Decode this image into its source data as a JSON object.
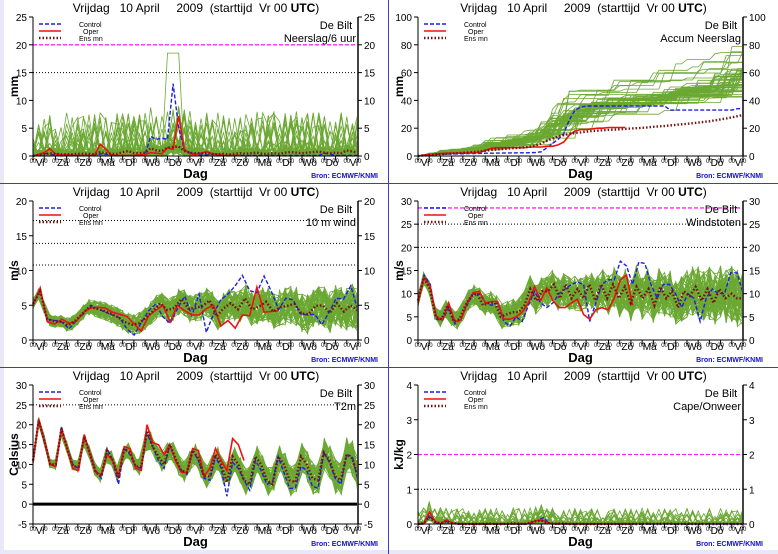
{
  "page": {
    "title_prefix": "Vrijdag   10 April     2009  (starttijd  Vr 00 ",
    "title_suffix": "UTC",
    "title_close": ")",
    "xlabel": "Dag",
    "source": "Bron:  ECMWF/KNMI",
    "station": "De Bilt",
    "days": [
      "Vr",
      "Za",
      "Zo",
      "Ma",
      "Di",
      "Wo",
      "Do",
      "Vr",
      "Za",
      "Zo",
      "Ma",
      "Di",
      "Wo",
      "Do",
      "Vr"
    ],
    "hour_tick": "00",
    "legend": {
      "control": "Control",
      "oper": "Oper",
      "ensmean": "Ens mn"
    },
    "colors": {
      "control": "#1f1fe0",
      "oper": "#ee1111",
      "ensmean": "#7a1010",
      "members": "#6aa832",
      "threshold_magenta": "#ff22ff",
      "border": "#3c3ccc",
      "source": "#1010d0"
    }
  },
  "chart_data": [
    {
      "type": "line",
      "id": "neerslag",
      "subtitle": "Neerslag/6 uur",
      "ylabel": "mm",
      "ylim": [
        0,
        25
      ],
      "yticks": [
        0,
        5,
        10,
        15,
        20,
        25
      ],
      "hlines": [
        {
          "y": 20,
          "style": "magenta-dash"
        },
        {
          "y": 15,
          "style": "black-dot"
        }
      ],
      "control": [
        0,
        0.2,
        0.5,
        0.3,
        0.2,
        0.1,
        0.1,
        0.2,
        0.1,
        0.1,
        0.1,
        0.2,
        0.4,
        0.3,
        0.2,
        0.1,
        0.1,
        0.1,
        0.1,
        0.2,
        0.3,
        3.5,
        3,
        3.2,
        3,
        13,
        5,
        1,
        0.6,
        0.3,
        0.2,
        0.2,
        0.3,
        0.2,
        0.1,
        0.1,
        0.1,
        0.1,
        0.1,
        0.1,
        0.1,
        0.1,
        0.1,
        0.1,
        0.1,
        0.1,
        0.1,
        0.1,
        0.1,
        0.1,
        0.1,
        0.1,
        0.5,
        0.3,
        0.1,
        0.1,
        0.1,
        0.1,
        0.1
      ],
      "oper": [
        0,
        0.3,
        0.6,
        1.3,
        0.4,
        0.2,
        0.2,
        0.1,
        0.1,
        0.1,
        0.1,
        0.2,
        2.1,
        1.2,
        0.2,
        0.1,
        0.1,
        0.1,
        0.1,
        0.2,
        0.3,
        0.6,
        0.5,
        0.4,
        1.5,
        1.2,
        7.2,
        1.2,
        0.4,
        0.3,
        0.5,
        0.8,
        0.4,
        0.3,
        0.1,
        0.1,
        0.1,
        0.1
      ],
      "ensmean": [
        0,
        0.2,
        0.3,
        0.5,
        0.4,
        0.3,
        0.3,
        0.3,
        0.4,
        0.4,
        0.4,
        0.3,
        0.7,
        0.5,
        0.4,
        0.4,
        0.7,
        0.9,
        0.5,
        0.5,
        0.6,
        1.4,
        1,
        0.9,
        1.5,
        1.6,
        1.7,
        0.9,
        0.6,
        0.5,
        0.5,
        0.5,
        0.4,
        0.3,
        0.4,
        0.3,
        0.4,
        0.5,
        0.4,
        0.5,
        0.6,
        0.4,
        0.4,
        0.5,
        0.4,
        0.6,
        0.7,
        0.6,
        0.5,
        0.6,
        0.7,
        0.8,
        0.6,
        0.5,
        0.6,
        0.5,
        1,
        0.8,
        0.6
      ],
      "members_summary": {
        "count": 50,
        "max": 18.5
      }
    },
    {
      "type": "line",
      "id": "accum",
      "subtitle": "Accum Neerslag",
      "ylabel": "mm",
      "ylim": [
        0,
        100
      ],
      "yticks": [
        0,
        20,
        40,
        60,
        80,
        100
      ],
      "hlines": [],
      "control": [
        0,
        0.5,
        1,
        1.2,
        1.3,
        1.4,
        1.5,
        1.5,
        1.6,
        1.7,
        1.8,
        1.9,
        2,
        2,
        2.1,
        2.1,
        2.2,
        2.2,
        2.3,
        2.3,
        2.4,
        2.5,
        3,
        6,
        9,
        12,
        16,
        26,
        33,
        35,
        36,
        36,
        36,
        36,
        36,
        36,
        36,
        36,
        36,
        36,
        36,
        36,
        36,
        36,
        36,
        33,
        33,
        33,
        33,
        33,
        33,
        33,
        33,
        33,
        33,
        33,
        33,
        34,
        34
      ],
      "oper": [
        0,
        0.5,
        1,
        1.5,
        1.8,
        2,
        2,
        2,
        2.1,
        2.2,
        2.3,
        2.5,
        4,
        5.5,
        6,
        6,
        6,
        6,
        6,
        6,
        6.5,
        6.5,
        6.5,
        7,
        7,
        8,
        10,
        15,
        18,
        19,
        19,
        19.5,
        20,
        20,
        20.5,
        20.5,
        20.5,
        20.6
      ],
      "ensmean": [
        0,
        0.4,
        0.8,
        1.1,
        1.4,
        1.6,
        1.8,
        2,
        2.2,
        2.5,
        2.8,
        3.2,
        3.8,
        4.3,
        4.6,
        5,
        5.3,
        5.6,
        5.9,
        6.2,
        6.6,
        7.5,
        9,
        11,
        12.5,
        14,
        15,
        16,
        16.5,
        17,
        17.5,
        18,
        18.2,
        18.5,
        18.8,
        19,
        19.2,
        19.5,
        19.8,
        20,
        20.3,
        20.6,
        21,
        21.3,
        21.6,
        22,
        22.4,
        22.8,
        23.2,
        23.6,
        24,
        24.5,
        25,
        25.6,
        26.3,
        27,
        27.8,
        28.6,
        29.5
      ],
      "members_summary": {
        "count": 50,
        "max": 84
      }
    },
    {
      "type": "line",
      "id": "wind10m",
      "subtitle": "10 m wind",
      "ylabel": "m/s",
      "ylim": [
        0,
        20
      ],
      "yticks": [
        0,
        5,
        10,
        15,
        20
      ],
      "hlines": [
        {
          "y": 17.2,
          "style": "black-dot"
        },
        {
          "y": 13.9,
          "style": "black-dot"
        },
        {
          "y": 10.8,
          "style": "black-dot"
        }
      ],
      "control": [
        5,
        7.2,
        3,
        2.8,
        2.6,
        1.6,
        2.8,
        3.8,
        5,
        4.5,
        4,
        3.6,
        3.2,
        1.6,
        0.7,
        2.5,
        4.2,
        5.2,
        3.3,
        2.4,
        4.5,
        6.3,
        3.5,
        6.6,
        1.1,
        3.8,
        5.8,
        6.6,
        7.8,
        9.3,
        7.1,
        6.8,
        9.2,
        7,
        4.4,
        6,
        5.8,
        3.8,
        3.6,
        3.7,
        2.2,
        4,
        6,
        5.9,
        7.8,
        4.2
      ],
      "oper": [
        5,
        7.5,
        2.6,
        2.3,
        3,
        2.4,
        2.7,
        4,
        4.6,
        4.7,
        4.6,
        4,
        3.7,
        3.4,
        2.3,
        1.3,
        3.5,
        4.3,
        5,
        2.6,
        5,
        4.2,
        3.6,
        3.6,
        4.5,
        5,
        2,
        2.8,
        1.7,
        3.6,
        3.5,
        7.6,
        4,
        4.1,
        4.2
      ],
      "ensmean": [
        5.2,
        7,
        3,
        2.7,
        2.6,
        2.1,
        2.8,
        3.8,
        4.8,
        4.5,
        4.2,
        3.8,
        3.3,
        2.6,
        2.2,
        2.4,
        3.2,
        4.2,
        5.3,
        4.3,
        4.6,
        5.9,
        4.5,
        4.6,
        4.9,
        5.7,
        3.4,
        4.6,
        5.3,
        4.4,
        6,
        4.4,
        4.8,
        5.5,
        4.1,
        4.7,
        4.9,
        5.2,
        3.8,
        3.7,
        4.9,
        5,
        3.9,
        5.3,
        4.1,
        5,
        4.2
      ],
      "members_summary": {
        "count": 50,
        "max": 13.5
      }
    },
    {
      "type": "line",
      "id": "windstoten",
      "subtitle": "Windstoten",
      "ylabel": "m/s",
      "ylim": [
        0,
        30
      ],
      "yticks": [
        0,
        5,
        10,
        15,
        20,
        25,
        30
      ],
      "hlines": [
        {
          "y": 28.5,
          "style": "magenta-dash"
        },
        {
          "y": 25,
          "style": "black-dot"
        },
        {
          "y": 20,
          "style": "black-dot"
        }
      ],
      "control": [
        8.5,
        14,
        12,
        4.5,
        4.2,
        7,
        3.5,
        4.5,
        7.5,
        10,
        10,
        8,
        7.5,
        8,
        4,
        3,
        5,
        4,
        7.5,
        10.5,
        8,
        7,
        8,
        10,
        11,
        12,
        12.5,
        12,
        4,
        8,
        12,
        13,
        13,
        17,
        16,
        12,
        16.8,
        16.5,
        12,
        9,
        12,
        12,
        10,
        7,
        10,
        9,
        4,
        9,
        11,
        10,
        10,
        14.5,
        14.5,
        10.2
      ],
      "oper": [
        8,
        13.5,
        11.5,
        5,
        4.3,
        8,
        4,
        4.3,
        8,
        10.2,
        10.5,
        8,
        8.3,
        8.3,
        4.5,
        4.5,
        5,
        6,
        8,
        11.5,
        8.5,
        11.2,
        8.5,
        7,
        7,
        8,
        8.8,
        5.5,
        4.5,
        6.5,
        7,
        6.5,
        9,
        13,
        14,
        7.5
      ],
      "ensmean": [
        8.5,
        13.5,
        11,
        5,
        4.5,
        7.5,
        4,
        4.5,
        7.5,
        9.5,
        10,
        7.5,
        8,
        8,
        5,
        5.5,
        6,
        6,
        7.5,
        11,
        8.5,
        10.5,
        10.5,
        12,
        9,
        12,
        9,
        11,
        9,
        12,
        8.5,
        12,
        9,
        12,
        9,
        11.5,
        8,
        11.5,
        9,
        11,
        7.5,
        11.5,
        9,
        10.5,
        7,
        10.5,
        9.5,
        11.5,
        8.5,
        11,
        8,
        11,
        9,
        10,
        9,
        9
      ],
      "members_summary": {
        "count": 50,
        "max": 25
      }
    },
    {
      "type": "line",
      "id": "t2m",
      "subtitle": "T2m",
      "ylabel": "Celsius",
      "ylim": [
        -5,
        30
      ],
      "yticks": [
        -5,
        0,
        5,
        10,
        15,
        20,
        25,
        30
      ],
      "hlines": [
        {
          "y": 25,
          "style": "black-dot"
        },
        {
          "y": 0,
          "style": "black-solid-thick"
        }
      ],
      "control": [
        11,
        21,
        15.5,
        10,
        9.5,
        19.5,
        14,
        10,
        9,
        17,
        13,
        8.5,
        6.5,
        14,
        11,
        5,
        14,
        12.5,
        9.5,
        9,
        18,
        14.5,
        11,
        9,
        15,
        11,
        8.5,
        7.5,
        13.5,
        11,
        6.5,
        6,
        12,
        9,
        2,
        10.5,
        9,
        6,
        3.5,
        11,
        8.5,
        5,
        5.5,
        12,
        8,
        4,
        4,
        9.5,
        8.5,
        4.5,
        4,
        13,
        10.5,
        6.5,
        5,
        12.5,
        12,
        6
      ],
      "oper": [
        10.5,
        21.5,
        16,
        10,
        9.5,
        19,
        14,
        9,
        8.5,
        17.5,
        12.5,
        8,
        7.5,
        12.5,
        11,
        7,
        14.5,
        14,
        9,
        8.5,
        20,
        15.5,
        15,
        12.5,
        15,
        11,
        8,
        8,
        14,
        13.5,
        7,
        9,
        14,
        11,
        8.5,
        16.5,
        15,
        11
      ],
      "ensmean": [
        11,
        21,
        16,
        10,
        10,
        19,
        14,
        9.5,
        9.5,
        17,
        12.5,
        8,
        7,
        13.5,
        11,
        6.5,
        14,
        13,
        9.5,
        9.5,
        18.5,
        14.5,
        12,
        10,
        15,
        11.5,
        8.5,
        8,
        13.5,
        11.5,
        7,
        7,
        12.5,
        10,
        5.5,
        12,
        10,
        6,
        5,
        12,
        10,
        6,
        5,
        12,
        10,
        6,
        5.5,
        12,
        10,
        6.5,
        6,
        13,
        11,
        7,
        6,
        12.5,
        11.5,
        7
      ],
      "members_summary": {
        "count": 50,
        "min": -1.5,
        "max": 23
      }
    },
    {
      "type": "line",
      "id": "cape",
      "subtitle": "Cape/Onweer",
      "ylabel": "kJ/kg",
      "ylim": [
        0,
        4
      ],
      "yticks": [
        0,
        1,
        2,
        3,
        4
      ],
      "hlines": [
        {
          "y": 2,
          "style": "magenta-dash"
        },
        {
          "y": 1,
          "style": "black-dot"
        }
      ],
      "control": [
        0,
        0,
        0.25,
        0.05,
        0,
        0.07,
        0.02,
        0,
        0,
        0,
        0,
        0,
        0,
        0,
        0,
        0,
        0,
        0,
        0,
        0,
        0.05,
        0.1,
        0.18,
        0.02,
        0,
        0,
        0,
        0,
        0,
        0,
        0,
        0,
        0,
        0,
        0,
        0,
        0,
        0,
        0,
        0,
        0,
        0,
        0,
        0,
        0,
        0,
        0,
        0,
        0,
        0,
        0,
        0,
        0,
        0,
        0,
        0,
        0,
        0
      ],
      "oper": [
        0,
        0,
        0.35,
        0.08,
        0,
        0.12,
        0.03,
        0,
        0,
        0,
        0,
        0,
        0,
        0,
        0,
        0,
        0,
        0,
        0,
        0,
        0.05,
        0.1,
        0.1,
        0.02,
        0,
        0,
        0,
        0,
        0,
        0,
        0,
        0,
        0,
        0,
        0,
        0,
        0,
        0
      ],
      "ensmean": [
        0,
        0.02,
        0.2,
        0.06,
        0.02,
        0.08,
        0.03,
        0.01,
        0,
        0,
        0,
        0,
        0.01,
        0.01,
        0,
        0,
        0.01,
        0.02,
        0.01,
        0,
        0.04,
        0.08,
        0.1,
        0.03,
        0.01,
        0.01,
        0.02,
        0,
        0,
        0,
        0,
        0,
        0,
        0,
        0,
        0,
        0,
        0,
        0,
        0,
        0.01,
        0.01,
        0,
        0,
        0.01,
        0.01,
        0,
        0,
        0.01,
        0,
        0,
        0,
        0,
        0,
        0,
        0,
        0,
        0,
        0
      ],
      "members_summary": {
        "count": 50,
        "max": 0.8
      }
    }
  ]
}
